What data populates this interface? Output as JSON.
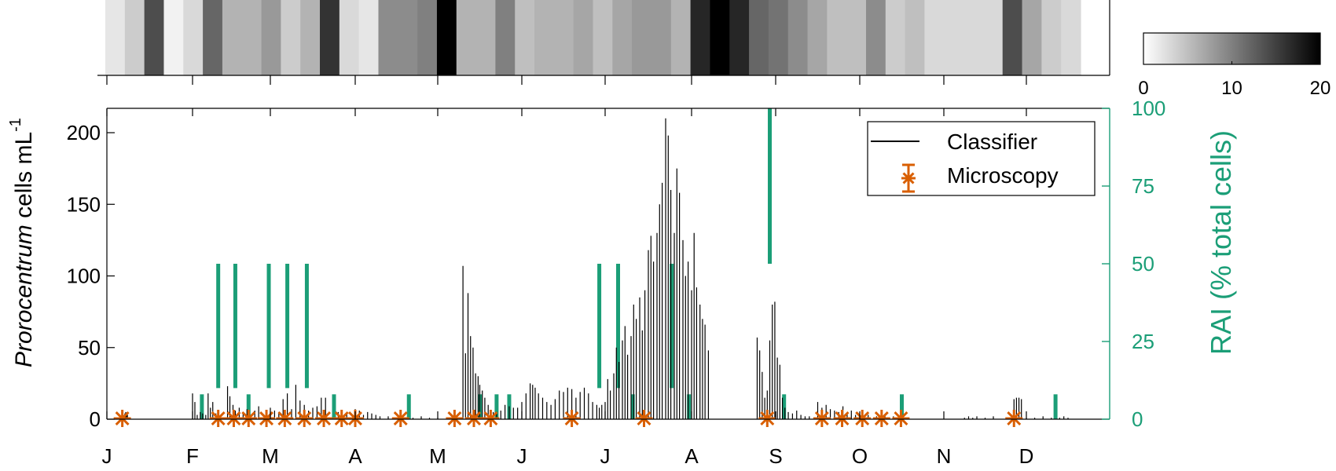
{
  "chart_data": {
    "type": "bar",
    "months": [
      "J",
      "F",
      "M",
      "A",
      "M",
      "J",
      "J",
      "A",
      "S",
      "O",
      "N",
      "D"
    ],
    "heat_strip": {
      "values": [
        2,
        4,
        14,
        1,
        3,
        12,
        6,
        6,
        8,
        4,
        6,
        16,
        3,
        2,
        9,
        9,
        10,
        20,
        6,
        6,
        10,
        5,
        6,
        6,
        7,
        5,
        7,
        8,
        8,
        6,
        17,
        20,
        17,
        12,
        11,
        9,
        7,
        5,
        5,
        9,
        4,
        5,
        3,
        3,
        3,
        3,
        14,
        7,
        4,
        3
      ],
      "colorbar": {
        "min": 0,
        "max": 20,
        "ticks": [
          "0",
          "10",
          "20"
        ]
      }
    },
    "y_left": {
      "label_italic": "Prorocentrum",
      "label_rest": " cells mL",
      "label_sup": "-1",
      "ticks": [
        "0",
        "50",
        "100",
        "150",
        "200"
      ],
      "ylim": [
        0,
        217
      ]
    },
    "y_right": {
      "label": "RAI (% total cells)",
      "ticks": [
        "0",
        "25",
        "50",
        "75",
        "100"
      ],
      "ylim": [
        0,
        100
      ]
    },
    "legend": {
      "position": "top-right",
      "classifier": "Classifier",
      "microscopy": "Microscopy"
    },
    "colors": {
      "classifier": "#000000",
      "microscopy": "#D95F02",
      "rai": "#1B9E77",
      "axis": "#000000"
    },
    "classifier": [
      [
        0.17,
        1
      ],
      [
        0.18,
        2
      ],
      [
        0.19,
        3
      ],
      [
        0.2,
        2
      ],
      [
        0.21,
        4
      ],
      [
        0.22,
        5
      ],
      [
        0.23,
        4
      ],
      [
        0.24,
        3
      ],
      [
        1.0,
        18
      ],
      [
        1.03,
        12
      ],
      [
        1.06,
        3
      ],
      [
        1.1,
        5
      ],
      [
        1.13,
        4
      ],
      [
        1.17,
        3
      ],
      [
        1.2,
        18
      ],
      [
        1.23,
        8
      ],
      [
        1.26,
        12
      ],
      [
        1.3,
        4
      ],
      [
        1.33,
        5
      ],
      [
        1.45,
        23
      ],
      [
        1.48,
        16
      ],
      [
        1.52,
        10
      ],
      [
        1.55,
        6
      ],
      [
        1.6,
        8
      ],
      [
        1.65,
        5
      ],
      [
        1.7,
        7
      ],
      [
        1.8,
        6
      ],
      [
        1.85,
        9
      ],
      [
        2.0,
        8
      ],
      [
        2.05,
        6
      ],
      [
        2.1,
        5
      ],
      [
        2.15,
        14
      ],
      [
        2.2,
        18
      ],
      [
        2.25,
        7
      ],
      [
        2.3,
        24
      ],
      [
        2.35,
        13
      ],
      [
        2.4,
        10
      ],
      [
        2.45,
        6
      ],
      [
        2.5,
        8
      ],
      [
        2.55,
        9
      ],
      [
        2.6,
        15
      ],
      [
        2.65,
        15
      ],
      [
        2.8,
        5
      ],
      [
        2.9,
        4
      ],
      [
        3.0,
        7
      ],
      [
        3.05,
        6
      ],
      [
        3.1,
        3
      ],
      [
        3.15,
        5
      ],
      [
        3.2,
        4
      ],
      [
        3.25,
        3
      ],
      [
        3.3,
        2
      ],
      [
        3.4,
        2
      ],
      [
        3.5,
        1
      ],
      [
        3.6,
        1
      ],
      [
        3.7,
        1
      ],
      [
        3.8,
        2
      ],
      [
        3.9,
        1
      ],
      [
        4.0,
        1
      ],
      [
        4.3,
        107
      ],
      [
        4.33,
        46
      ],
      [
        4.36,
        88
      ],
      [
        4.39,
        58
      ],
      [
        4.42,
        50
      ],
      [
        4.45,
        32
      ],
      [
        4.48,
        30
      ],
      [
        4.5,
        24
      ],
      [
        4.53,
        20
      ],
      [
        4.56,
        15
      ],
      [
        4.6,
        10
      ],
      [
        4.63,
        6
      ],
      [
        4.66,
        5
      ],
      [
        4.7,
        5
      ],
      [
        4.75,
        6
      ],
      [
        4.8,
        10
      ],
      [
        4.85,
        9
      ],
      [
        4.9,
        8
      ],
      [
        4.95,
        8
      ],
      [
        5.0,
        12
      ],
      [
        5.05,
        18
      ],
      [
        5.1,
        25
      ],
      [
        5.13,
        24
      ],
      [
        5.16,
        22
      ],
      [
        5.2,
        18
      ],
      [
        5.25,
        15
      ],
      [
        5.3,
        12
      ],
      [
        5.35,
        10
      ],
      [
        5.4,
        14
      ],
      [
        5.45,
        20
      ],
      [
        5.5,
        19
      ],
      [
        5.55,
        22
      ],
      [
        5.6,
        21
      ],
      [
        5.65,
        15
      ],
      [
        5.7,
        19
      ],
      [
        5.75,
        22
      ],
      [
        5.8,
        18
      ],
      [
        5.85,
        12
      ],
      [
        5.9,
        10
      ],
      [
        5.93,
        8
      ],
      [
        5.96,
        10
      ],
      [
        6.0,
        12
      ],
      [
        6.03,
        28
      ],
      [
        6.06,
        20
      ],
      [
        6.1,
        32
      ],
      [
        6.13,
        50
      ],
      [
        6.16,
        40
      ],
      [
        6.2,
        55
      ],
      [
        6.23,
        65
      ],
      [
        6.26,
        45
      ],
      [
        6.3,
        58
      ],
      [
        6.33,
        80
      ],
      [
        6.36,
        70
      ],
      [
        6.4,
        85
      ],
      [
        6.43,
        62
      ],
      [
        6.46,
        90
      ],
      [
        6.5,
        118
      ],
      [
        6.53,
        128
      ],
      [
        6.56,
        110
      ],
      [
        6.6,
        130
      ],
      [
        6.63,
        150
      ],
      [
        6.66,
        165
      ],
      [
        6.7,
        210
      ],
      [
        6.73,
        198
      ],
      [
        6.76,
        160
      ],
      [
        6.8,
        130
      ],
      [
        6.83,
        175
      ],
      [
        6.86,
        158
      ],
      [
        6.9,
        125
      ],
      [
        6.93,
        100
      ],
      [
        6.96,
        110
      ],
      [
        7.0,
        90
      ],
      [
        7.03,
        130
      ],
      [
        7.06,
        92
      ],
      [
        7.1,
        80
      ],
      [
        7.13,
        70
      ],
      [
        7.16,
        66
      ],
      [
        7.2,
        48
      ],
      [
        7.78,
        57
      ],
      [
        7.81,
        48
      ],
      [
        7.84,
        33
      ],
      [
        7.87,
        15
      ],
      [
        7.9,
        20
      ],
      [
        7.93,
        55
      ],
      [
        7.96,
        80
      ],
      [
        7.99,
        82
      ],
      [
        8.02,
        43
      ],
      [
        8.05,
        38
      ],
      [
        8.08,
        15
      ],
      [
        8.11,
        8
      ],
      [
        8.15,
        5
      ],
      [
        8.2,
        4
      ],
      [
        8.25,
        6
      ],
      [
        8.3,
        3
      ],
      [
        8.35,
        2
      ],
      [
        8.4,
        2
      ],
      [
        8.5,
        12
      ],
      [
        8.55,
        8
      ],
      [
        8.6,
        10
      ],
      [
        8.65,
        7
      ],
      [
        8.7,
        6
      ],
      [
        8.75,
        5
      ],
      [
        8.8,
        9
      ],
      [
        8.85,
        4
      ],
      [
        8.9,
        6
      ],
      [
        8.95,
        3
      ],
      [
        9.0,
        2
      ],
      [
        9.1,
        3
      ],
      [
        9.2,
        2
      ],
      [
        9.3,
        2
      ],
      [
        9.4,
        2
      ],
      [
        9.5,
        1
      ],
      [
        10.25,
        1
      ],
      [
        10.3,
        2
      ],
      [
        10.35,
        1
      ],
      [
        10.4,
        2
      ],
      [
        10.5,
        1
      ],
      [
        10.6,
        2
      ],
      [
        10.8,
        1
      ],
      [
        10.85,
        14
      ],
      [
        10.88,
        15
      ],
      [
        10.91,
        15
      ],
      [
        10.94,
        14
      ],
      [
        11.0,
        1
      ],
      [
        11.1,
        1
      ],
      [
        11.2,
        2
      ],
      [
        11.3,
        1
      ],
      [
        11.4,
        1
      ],
      [
        11.45,
        2
      ],
      [
        11.5,
        1
      ]
    ],
    "microscopy": [
      0.18,
      1.33,
      1.53,
      1.72,
      1.95,
      2.17,
      2.4,
      2.63,
      2.84,
      3.0,
      3.55,
      4.2,
      4.43,
      4.63,
      5.6,
      6.45,
      7.9,
      8.55,
      8.79,
      9.03,
      9.26,
      9.49,
      10.85
    ],
    "rai": [
      [
        1.12,
        0,
        8
      ],
      [
        1.33,
        10,
        50
      ],
      [
        1.55,
        10,
        50
      ],
      [
        1.72,
        0,
        8
      ],
      [
        1.98,
        10,
        50
      ],
      [
        2.2,
        10,
        50
      ],
      [
        2.43,
        10,
        50
      ],
      [
        2.75,
        0,
        8
      ],
      [
        3.65,
        0,
        8
      ],
      [
        4.5,
        0,
        8
      ],
      [
        4.7,
        0,
        8
      ],
      [
        4.85,
        0,
        8
      ],
      [
        5.93,
        10,
        50
      ],
      [
        6.15,
        10,
        50
      ],
      [
        6.32,
        0,
        8
      ],
      [
        6.77,
        10,
        50
      ],
      [
        6.97,
        0,
        8
      ],
      [
        7.93,
        50,
        100
      ],
      [
        8.1,
        0,
        8
      ],
      [
        9.5,
        0,
        8
      ],
      [
        11.35,
        0,
        8
      ]
    ]
  }
}
